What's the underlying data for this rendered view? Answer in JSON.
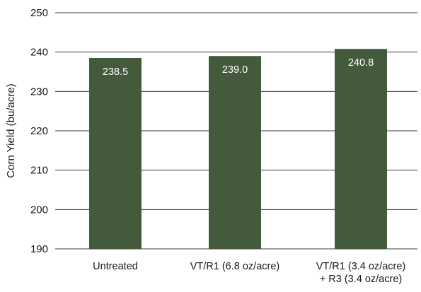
{
  "chart_data": {
    "type": "bar",
    "categories": [
      [
        "Untreated"
      ],
      [
        "VT/R1 (6.8 oz/acre)"
      ],
      [
        "VT/R1 (3.4 oz/acre)",
        "+ R3 (3.4 oz/acre)"
      ]
    ],
    "values": [
      238.5,
      239.0,
      240.8
    ],
    "value_labels": [
      "238.5",
      "239.0",
      "240.8"
    ],
    "ylabel": "Corn Yield (bu/acre)",
    "xlabel": "",
    "ylim": [
      190,
      250
    ],
    "yticks": [
      190,
      200,
      210,
      220,
      230,
      240,
      250
    ],
    "grid": "horizontal",
    "colors": {
      "bar": "#435b3c",
      "grid": "#3a3a3a",
      "text": "#1a1a1a",
      "value_text": "#ffffff"
    }
  }
}
